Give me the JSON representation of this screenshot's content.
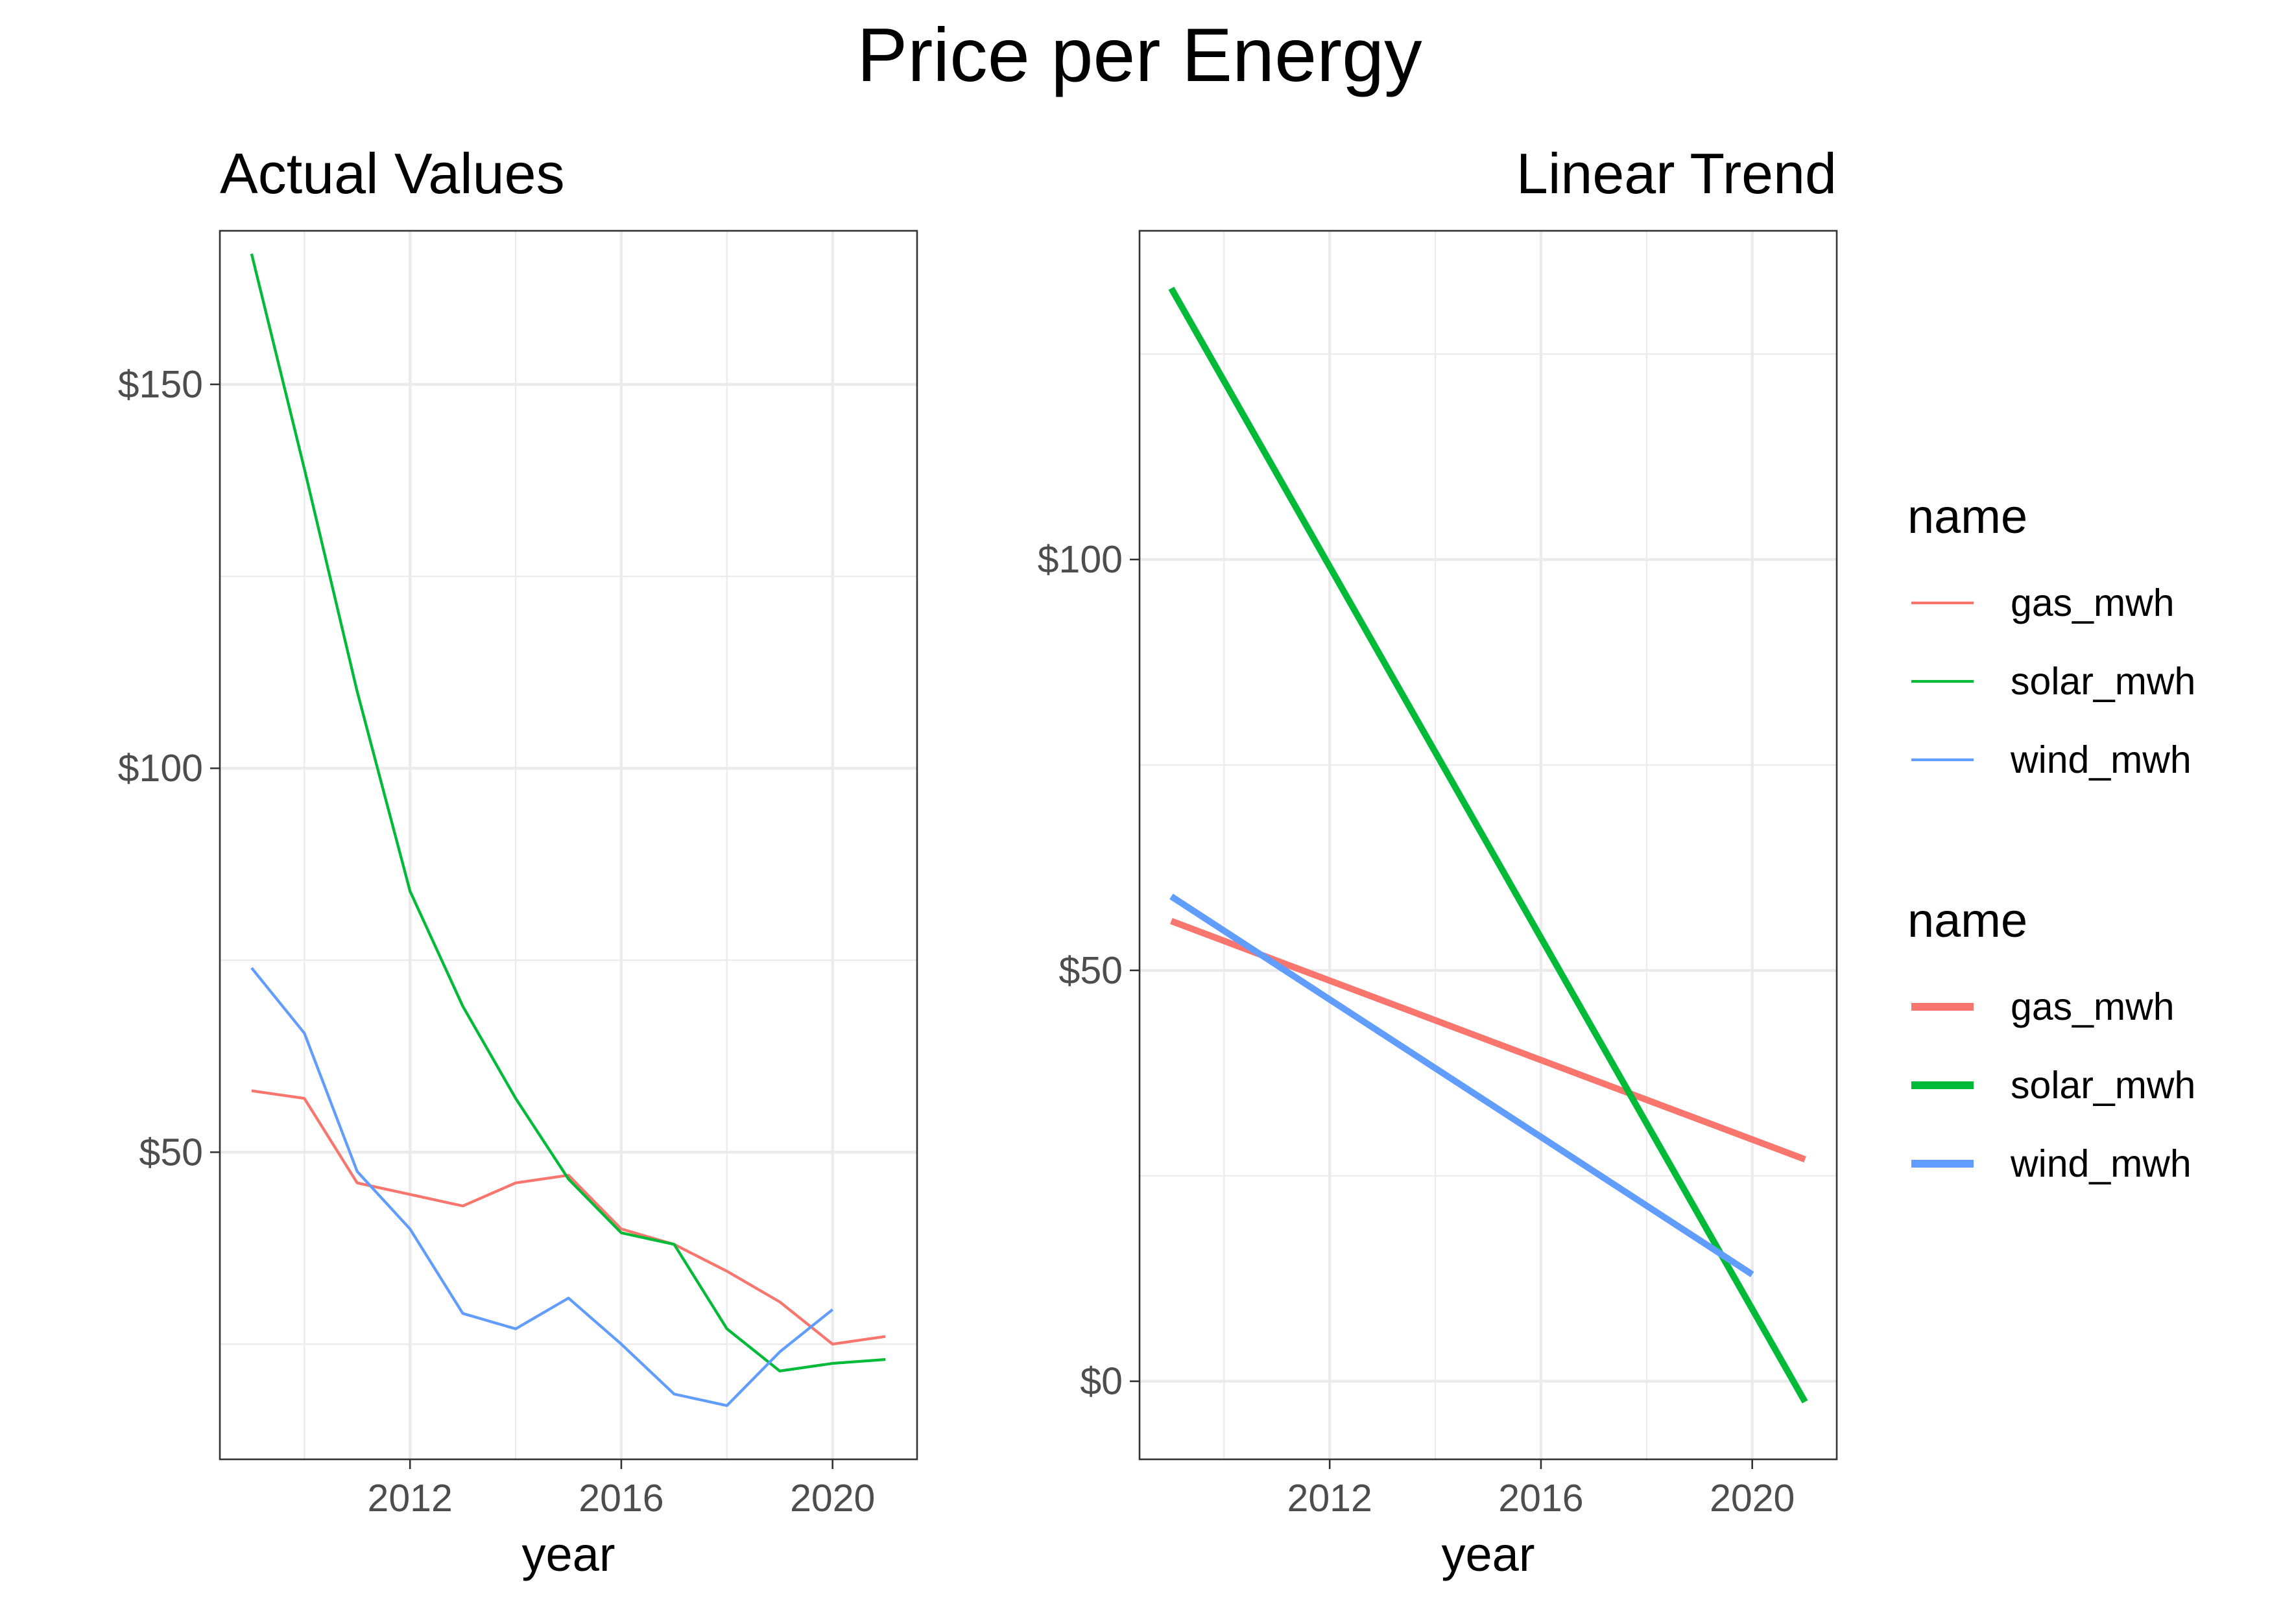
{
  "title": "Price per Energy",
  "colors": {
    "gas_mwh": "#F8766D",
    "solar_mwh": "#00BA38",
    "wind_mwh": "#619CFF"
  },
  "legends": [
    {
      "title": "name",
      "style": "thin",
      "items": [
        "gas_mwh",
        "solar_mwh",
        "wind_mwh"
      ]
    },
    {
      "title": "name",
      "style": "thick",
      "items": [
        "gas_mwh",
        "solar_mwh",
        "wind_mwh"
      ]
    }
  ],
  "chart_data": [
    {
      "type": "line",
      "title": "Actual Values",
      "title_align": "left",
      "xlabel": "year",
      "ylabel": "",
      "xlim": [
        2008.4,
        2021.6
      ],
      "ylim": [
        10,
        170
      ],
      "x_ticks": [
        2012,
        2016,
        2020
      ],
      "x_tick_labels": [
        "2012",
        "2016",
        "2020"
      ],
      "x_minor": [
        2010,
        2014,
        2018
      ],
      "y_ticks": [
        50,
        100,
        150
      ],
      "y_tick_labels": [
        "$50",
        "$100",
        "$150"
      ],
      "y_minor": [
        25,
        75,
        125
      ],
      "grid": true,
      "series": [
        {
          "name": "gas_mwh",
          "x": [
            2009,
            2010,
            2011,
            2012,
            2013,
            2014,
            2015,
            2016,
            2017,
            2018,
            2019,
            2020,
            2021
          ],
          "y": [
            58,
            57,
            46,
            44.5,
            43,
            46,
            47,
            40,
            38,
            34.5,
            30.5,
            25,
            26
          ]
        },
        {
          "name": "solar_mwh",
          "x": [
            2009,
            2010,
            2011,
            2012,
            2013,
            2014,
            2015,
            2016,
            2017,
            2018,
            2019,
            2020,
            2021
          ],
          "y": [
            167,
            139,
            110,
            84,
            69,
            57,
            46.5,
            39.5,
            38,
            27,
            21.5,
            22.5,
            23
          ]
        },
        {
          "name": "wind_mwh",
          "x": [
            2009,
            2010,
            2011,
            2012,
            2013,
            2014,
            2015,
            2016,
            2017,
            2018,
            2019,
            2020
          ],
          "y": [
            74,
            65.5,
            47.5,
            40,
            29,
            27,
            31,
            25,
            18.5,
            17,
            24,
            29.5
          ]
        }
      ]
    },
    {
      "type": "line",
      "title": "Linear Trend",
      "title_align": "right",
      "xlabel": "year",
      "ylabel": "",
      "xlim": [
        2008.4,
        2021.6
      ],
      "ylim": [
        -9.5,
        140
      ],
      "x_ticks": [
        2012,
        2016,
        2020
      ],
      "x_tick_labels": [
        "2012",
        "2016",
        "2020"
      ],
      "x_minor": [
        2010,
        2014,
        2018
      ],
      "y_ticks": [
        0,
        50,
        100
      ],
      "y_tick_labels": [
        "$0",
        "$50",
        "$100"
      ],
      "y_minor": [
        25,
        75,
        125
      ],
      "grid": true,
      "series": [
        {
          "name": "gas_mwh",
          "x": [
            2009,
            2021
          ],
          "y": [
            56,
            27
          ]
        },
        {
          "name": "solar_mwh",
          "x": [
            2009,
            2021
          ],
          "y": [
            133,
            -2.5
          ]
        },
        {
          "name": "wind_mwh",
          "x": [
            2009,
            2020
          ],
          "y": [
            59,
            13
          ]
        }
      ]
    }
  ]
}
